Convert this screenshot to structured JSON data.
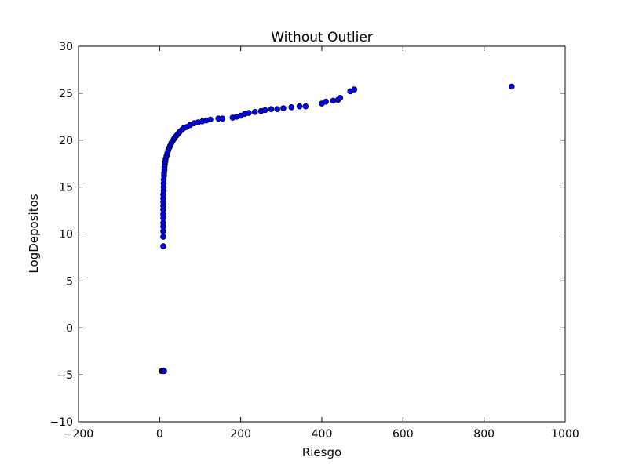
{
  "chart_data": {
    "type": "scatter",
    "title": "Without Outlier",
    "xlabel": "Riesgo",
    "ylabel": "LogDepositos",
    "xlim": [
      -200,
      1000
    ],
    "ylim": [
      -10,
      30
    ],
    "xticks": [
      -200,
      0,
      200,
      400,
      600,
      800,
      1000
    ],
    "yticks": [
      -10,
      -5,
      0,
      5,
      10,
      15,
      20,
      25,
      30
    ],
    "xtick_labels": [
      "−200",
      "0",
      "200",
      "400",
      "600",
      "800",
      "1000"
    ],
    "ytick_labels": [
      "−10",
      "−5",
      "0",
      "5",
      "10",
      "15",
      "20",
      "25",
      "30"
    ],
    "grid": false,
    "legend": "none",
    "marker_color": "#0000ff",
    "points": [
      [
        5,
        -4.6
      ],
      [
        6,
        -4.55
      ],
      [
        7,
        -4.6
      ],
      [
        8,
        -4.6
      ],
      [
        9,
        -4.55
      ],
      [
        10,
        -4.6
      ],
      [
        11,
        -4.6
      ],
      [
        9,
        8.7
      ],
      [
        9,
        9.7
      ],
      [
        9,
        10.3
      ],
      [
        9,
        10.8
      ],
      [
        9,
        11.2
      ],
      [
        9,
        11.7
      ],
      [
        9,
        12.1
      ],
      [
        9,
        12.6
      ],
      [
        9,
        13.0
      ],
      [
        9,
        13.4
      ],
      [
        9,
        13.8
      ],
      [
        9,
        14.2
      ],
      [
        10,
        14.6
      ],
      [
        10,
        15.0
      ],
      [
        10,
        15.4
      ],
      [
        10,
        15.8
      ],
      [
        11,
        16.2
      ],
      [
        11,
        16.5
      ],
      [
        12,
        16.8
      ],
      [
        12,
        17.1
      ],
      [
        13,
        17.4
      ],
      [
        14,
        17.7
      ],
      [
        15,
        18.0
      ],
      [
        17,
        18.3
      ],
      [
        19,
        18.6
      ],
      [
        21,
        18.9
      ],
      [
        24,
        19.2
      ],
      [
        26,
        19.4
      ],
      [
        29,
        19.7
      ],
      [
        32,
        19.9
      ],
      [
        35,
        20.1
      ],
      [
        38,
        20.3
      ],
      [
        42,
        20.5
      ],
      [
        46,
        20.7
      ],
      [
        50,
        20.9
      ],
      [
        55,
        21.1
      ],
      [
        60,
        21.3
      ],
      [
        67,
        21.4
      ],
      [
        75,
        21.6
      ],
      [
        85,
        21.8
      ],
      [
        95,
        21.9
      ],
      [
        105,
        22.0
      ],
      [
        115,
        22.1
      ],
      [
        125,
        22.2
      ],
      [
        145,
        22.3
      ],
      [
        155,
        22.3
      ],
      [
        180,
        22.4
      ],
      [
        190,
        22.5
      ],
      [
        200,
        22.6
      ],
      [
        210,
        22.8
      ],
      [
        220,
        22.9
      ],
      [
        235,
        23.0
      ],
      [
        250,
        23.1
      ],
      [
        260,
        23.2
      ],
      [
        275,
        23.3
      ],
      [
        290,
        23.3
      ],
      [
        305,
        23.4
      ],
      [
        325,
        23.5
      ],
      [
        345,
        23.6
      ],
      [
        360,
        23.6
      ],
      [
        400,
        23.9
      ],
      [
        410,
        24.1
      ],
      [
        428,
        24.2
      ],
      [
        440,
        24.3
      ],
      [
        445,
        24.5
      ],
      [
        470,
        25.2
      ],
      [
        480,
        25.4
      ],
      [
        868,
        25.7
      ]
    ]
  }
}
